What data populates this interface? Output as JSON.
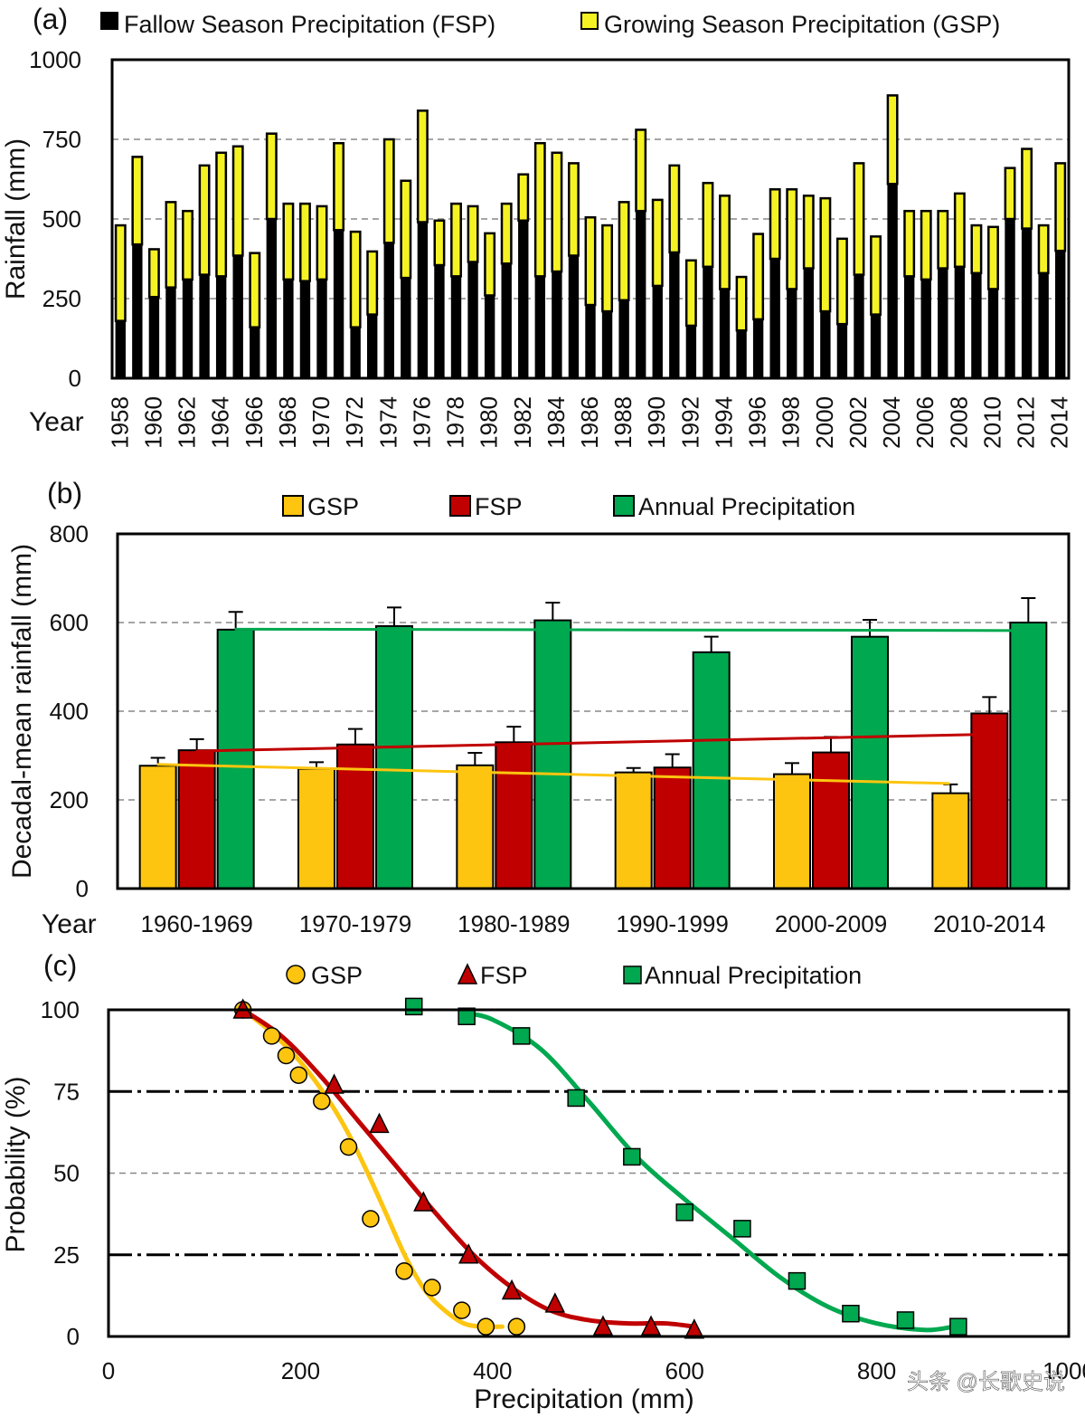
{
  "chart_data": [
    {
      "panel": "(a)",
      "type": "bar",
      "stacked": true,
      "legend": [
        "Fallow Season Precipitation (FSP)",
        "Growing Season Precipitation (GSP)"
      ],
      "ylabel": "Rainfall (mm)",
      "xlabel": "Year",
      "ylim": [
        0,
        1000
      ],
      "yticks": [
        0,
        250,
        500,
        750,
        1000
      ],
      "colors": {
        "fsp": "#000000",
        "gsp": "#f5f224"
      },
      "years": [
        1958,
        1959,
        1960,
        1961,
        1962,
        1963,
        1964,
        1965,
        1966,
        1967,
        1968,
        1969,
        1970,
        1971,
        1972,
        1973,
        1974,
        1975,
        1976,
        1977,
        1978,
        1979,
        1980,
        1981,
        1982,
        1983,
        1984,
        1985,
        1986,
        1987,
        1988,
        1989,
        1990,
        1991,
        1992,
        1993,
        1994,
        1995,
        1996,
        1997,
        1998,
        1999,
        2000,
        2001,
        2002,
        2003,
        2004,
        2005,
        2006,
        2007,
        2008,
        2009,
        2010,
        2011,
        2012,
        2013,
        2014
      ],
      "xtick_labels": [
        "1958",
        "1960",
        "1962",
        "1964",
        "1966",
        "1968",
        "1970",
        "1972",
        "1974",
        "1976",
        "1978",
        "1980",
        "1982",
        "1984",
        "1986",
        "1988",
        "1990",
        "1992",
        "1994",
        "1996",
        "1998",
        "2000",
        "2002",
        "2004",
        "2006",
        "2008",
        "2010",
        "2012",
        "2014"
      ],
      "totals": [
        480,
        695,
        405,
        553,
        525,
        668,
        708,
        728,
        393,
        768,
        548,
        548,
        540,
        738,
        460,
        398,
        750,
        620,
        840,
        495,
        548,
        540,
        455,
        548,
        640,
        738,
        708,
        675,
        505,
        480,
        553,
        780,
        560,
        668,
        370,
        613,
        573,
        318,
        453,
        593,
        593,
        573,
        565,
        438,
        675,
        445,
        888,
        525,
        525,
        525,
        580,
        480,
        475,
        660,
        720,
        480,
        675
      ],
      "fsp": [
        180,
        420,
        255,
        285,
        310,
        325,
        320,
        385,
        160,
        500,
        310,
        305,
        310,
        465,
        160,
        200,
        425,
        315,
        490,
        355,
        320,
        365,
        260,
        360,
        495,
        320,
        335,
        385,
        230,
        210,
        245,
        525,
        290,
        395,
        165,
        350,
        280,
        150,
        185,
        375,
        280,
        345,
        210,
        170,
        325,
        200,
        610,
        320,
        310,
        345,
        350,
        330,
        280,
        500,
        470,
        330,
        400
      ]
    },
    {
      "panel": "(b)",
      "type": "bar",
      "legend": [
        "GSP",
        "FSP",
        "Annual Precipitation"
      ],
      "ylabel": "Decadal-mean rainfall (mm)",
      "xlabel": "Year",
      "ylim": [
        0,
        800
      ],
      "yticks": [
        0,
        200,
        400,
        600,
        800
      ],
      "categories": [
        "1960-1969",
        "1970-1979",
        "1980-1989",
        "1990-1999",
        "2000-2009",
        "2010-2014"
      ],
      "series": [
        {
          "name": "GSP",
          "color": "#fdc510",
          "values": [
            277,
            270,
            278,
            262,
            258,
            215
          ],
          "errors": [
            18,
            15,
            28,
            10,
            25,
            20
          ]
        },
        {
          "name": "FSP",
          "color": "#c00000",
          "values": [
            312,
            325,
            330,
            273,
            307,
            395
          ],
          "errors": [
            25,
            35,
            35,
            30,
            35,
            37
          ]
        },
        {
          "name": "Annual Precipitation",
          "color": "#00a84f",
          "values": [
            584,
            592,
            605,
            533,
            568,
            600
          ],
          "errors": [
            40,
            42,
            40,
            35,
            38,
            55
          ]
        }
      ],
      "trendlines": [
        {
          "name": "GSP",
          "color": "#fdc510",
          "y_start": 280,
          "y_end": 237
        },
        {
          "name": "FSP",
          "color": "#c00000",
          "y_start": 310,
          "y_end": 348
        },
        {
          "name": "Annual Precipitation",
          "color": "#00a84f",
          "y_start": 585,
          "y_end": 582
        }
      ]
    },
    {
      "panel": "(c)",
      "type": "scatter",
      "legend": [
        "GSP",
        "FSP",
        "Annual Precipitation"
      ],
      "xlabel": "Precipitation (mm)",
      "ylabel": "Probability (%)",
      "xlim": [
        0,
        1000
      ],
      "ylim": [
        0,
        100
      ],
      "xticks": [
        0,
        200,
        400,
        600,
        800,
        1000
      ],
      "yticks": [
        0,
        25,
        50,
        75,
        100
      ],
      "reference_lines": [
        25,
        75
      ],
      "series": [
        {
          "name": "GSP",
          "marker": "circle",
          "color": "#fdc510",
          "x": [
            140,
            170,
            185,
            198,
            222,
            250,
            273,
            308,
            337,
            368,
            393,
            425
          ],
          "y": [
            100,
            92,
            86,
            80,
            72,
            58,
            36,
            20,
            15,
            8,
            3,
            3
          ],
          "curve_x": [
            140,
            170,
            200,
            230,
            250,
            270,
            290,
            310,
            330,
            350,
            370,
            390,
            410
          ],
          "curve_y": [
            100,
            93,
            84,
            72,
            62,
            50,
            37,
            24,
            14,
            8,
            4,
            3,
            3
          ]
        },
        {
          "name": "FSP",
          "marker": "triangle",
          "color": "#c00000",
          "x": [
            140,
            235,
            282,
            328,
            375,
            420,
            465,
            515,
            565,
            610
          ],
          "y": [
            100,
            77,
            65,
            41,
            25,
            14,
            10,
            3,
            3,
            2
          ],
          "curve_x": [
            140,
            180,
            220,
            260,
            300,
            340,
            380,
            420,
            460,
            500,
            540,
            580,
            610
          ],
          "curve_y": [
            100,
            92,
            80,
            66,
            52,
            38,
            25,
            15,
            8,
            5,
            4,
            4,
            3
          ]
        },
        {
          "name": "Annual Precipitation",
          "marker": "square",
          "color": "#00a84f",
          "x": [
            318,
            373,
            430,
            487,
            545,
            600,
            660,
            717,
            773,
            830,
            885
          ],
          "y": [
            101,
            98,
            92,
            73,
            55,
            38,
            33,
            17,
            7,
            5,
            3
          ],
          "curve_x": [
            370,
            400,
            450,
            500,
            550,
            600,
            650,
            700,
            750,
            800,
            850,
            880
          ],
          "curve_y": [
            99,
            97,
            88,
            72,
            55,
            42,
            30,
            18,
            9,
            4,
            2,
            3
          ]
        }
      ]
    }
  ],
  "watermark": "头条 @长歌史说"
}
